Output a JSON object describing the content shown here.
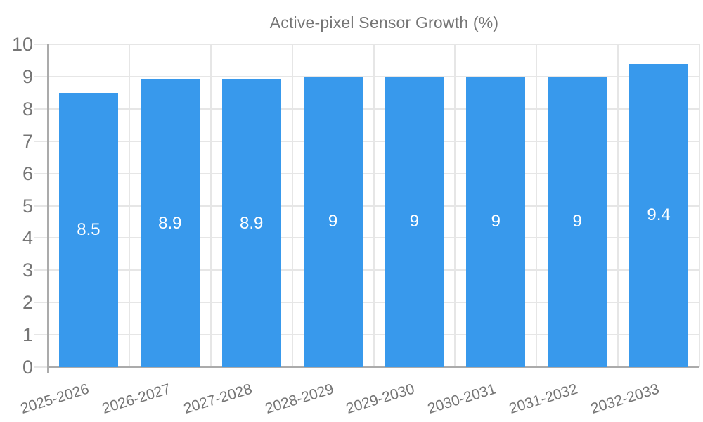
{
  "legend": {
    "label": "Active-pixel Sensor Growth (%)"
  },
  "colors": {
    "bar": "#3899EC",
    "grid": "#E6E6E6",
    "axis": "#ABABAB",
    "text": "#757575",
    "value_label": "#FFFFFF"
  },
  "chart_data": {
    "type": "bar",
    "title": "",
    "categories": [
      "2025-2026",
      "2026-2027",
      "2027-2028",
      "2028-2029",
      "2029-2030",
      "2030-2031",
      "2031-2032",
      "2032-2033"
    ],
    "series": [
      {
        "name": "Active-pixel Sensor Growth (%)",
        "values": [
          8.5,
          8.9,
          8.9,
          9,
          9,
          9,
          9,
          9.4
        ]
      }
    ],
    "xlabel": "",
    "ylabel": "",
    "ylim": [
      0,
      10
    ],
    "y_ticks": [
      0,
      1,
      2,
      3,
      4,
      5,
      6,
      7,
      8,
      9,
      10
    ],
    "grid": true,
    "legend_position": "top",
    "value_label_position": "inside-center"
  }
}
